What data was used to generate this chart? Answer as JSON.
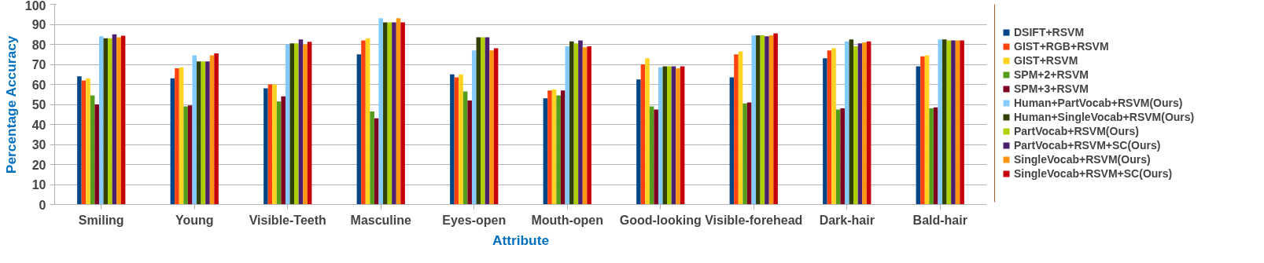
{
  "chart_data": {
    "type": "bar",
    "xlabel": "Attribute",
    "ylabel": "Percentage Accuracy",
    "categories": [
      "Smiling",
      "Young",
      "Visible-Teeth",
      "Masculine",
      "Eyes-open",
      "Mouth-open",
      "Good-looking",
      "Visible-forehead",
      "Dark-hair",
      "Bald-hair"
    ],
    "series": [
      {
        "name": "DSIFT+RSVM",
        "color": "#004586",
        "values": [
          64,
          63,
          58,
          75,
          65,
          53,
          62.5,
          63.5,
          73,
          69
        ]
      },
      {
        "name": "GIST+RGB+RSVM",
        "color": "#ff420e",
        "values": [
          62,
          68,
          60,
          82,
          63.5,
          57,
          70,
          75,
          77,
          74
        ]
      },
      {
        "name": "GIST+RSVM",
        "color": "#ffd320",
        "values": [
          63,
          68.5,
          60,
          83,
          65,
          57.5,
          73,
          76.5,
          78,
          74.5
        ]
      },
      {
        "name": "SPM+2+RSVM",
        "color": "#579d1c",
        "values": [
          54.5,
          49,
          51.5,
          46.5,
          56.5,
          54.5,
          49,
          50.5,
          47.5,
          48
        ]
      },
      {
        "name": "SPM+3+RSVM",
        "color": "#7e0021",
        "values": [
          50,
          49.5,
          54,
          43,
          52,
          57,
          47.5,
          51,
          48,
          48.5
        ]
      },
      {
        "name": "Human+PartVocab+RSVM(Ours)",
        "color": "#83caff",
        "values": [
          84,
          74.5,
          80,
          93,
          77,
          79,
          68.5,
          84.5,
          81.5,
          82.5
        ]
      },
      {
        "name": "Human+SingleVocab+RSVM(Ours)",
        "color": "#314004",
        "values": [
          83,
          71.5,
          80.5,
          91,
          83.5,
          81.5,
          69,
          84.5,
          82.5,
          82.5
        ]
      },
      {
        "name": "PartVocab+RSVM(Ours)",
        "color": "#aecf00",
        "values": [
          83,
          71.5,
          80.5,
          91,
          83.5,
          80.5,
          69,
          84.5,
          79,
          82
        ]
      },
      {
        "name": "PartVocab+RSVM+SC(Ours)",
        "color": "#4b1f6f",
        "values": [
          85,
          71.5,
          82.5,
          91,
          83.5,
          82,
          69,
          84,
          80.5,
          82
        ]
      },
      {
        "name": "SingleVocab+RSVM(Ours)",
        "color": "#ff950e",
        "values": [
          83.5,
          74.5,
          80,
          93,
          77,
          78.5,
          68,
          84.5,
          81,
          82
        ]
      },
      {
        "name": "SingleVocab+RSVM+SC(Ours)",
        "color": "#c5000b",
        "values": [
          84.3,
          75.5,
          81.3,
          91,
          78,
          79,
          69,
          85.5,
          81.5,
          82
        ]
      }
    ],
    "ylim": [
      0,
      100
    ],
    "yticks": [
      0,
      10,
      20,
      30,
      40,
      50,
      60,
      70,
      80,
      90,
      100
    ],
    "grid": "y",
    "legend": "right"
  }
}
